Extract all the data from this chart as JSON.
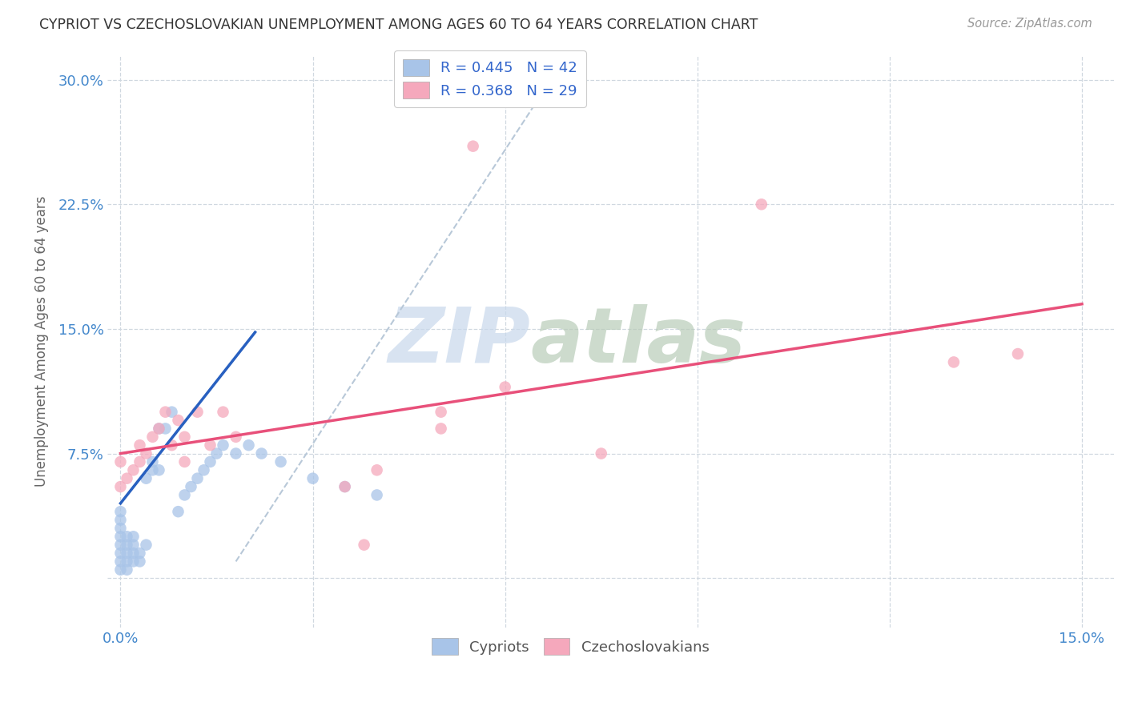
{
  "title": "CYPRIOT VS CZECHOSLOVAKIAN UNEMPLOYMENT AMONG AGES 60 TO 64 YEARS CORRELATION CHART",
  "source": "Source: ZipAtlas.com",
  "ylabel": "Unemployment Among Ages 60 to 64 years",
  "xlim": [
    -0.002,
    0.155
  ],
  "ylim": [
    -0.03,
    0.315
  ],
  "xticks": [
    0.0,
    0.03,
    0.06,
    0.09,
    0.12,
    0.15
  ],
  "xticklabels": [
    "0.0%",
    "",
    "",
    "",
    "",
    "15.0%"
  ],
  "yticks": [
    0.0,
    0.075,
    0.15,
    0.225,
    0.3
  ],
  "yticklabels": [
    "",
    "7.5%",
    "15.0%",
    "22.5%",
    "30.0%"
  ],
  "cypriot_color": "#a8c4e8",
  "czechoslovakian_color": "#f5a8bc",
  "cypriot_line_color": "#2860c0",
  "czechoslovakian_line_color": "#e8507a",
  "trend_line_color": "#b8c8d8",
  "R_cypriot": 0.445,
  "N_cypriot": 42,
  "R_czech": 0.368,
  "N_czech": 29,
  "cypriot_x": [
    0.0,
    0.0,
    0.0,
    0.0,
    0.0,
    0.0,
    0.0,
    0.0,
    0.001,
    0.001,
    0.001,
    0.001,
    0.001,
    0.002,
    0.002,
    0.002,
    0.002,
    0.003,
    0.003,
    0.004,
    0.004,
    0.005,
    0.005,
    0.006,
    0.006,
    0.007,
    0.008,
    0.009,
    0.01,
    0.011,
    0.012,
    0.013,
    0.014,
    0.015,
    0.016,
    0.018,
    0.02,
    0.022,
    0.025,
    0.03,
    0.035,
    0.04
  ],
  "cypriot_y": [
    0.005,
    0.01,
    0.015,
    0.02,
    0.025,
    0.03,
    0.035,
    0.04,
    0.005,
    0.01,
    0.015,
    0.02,
    0.025,
    0.01,
    0.015,
    0.02,
    0.025,
    0.01,
    0.015,
    0.02,
    0.06,
    0.065,
    0.07,
    0.065,
    0.09,
    0.09,
    0.1,
    0.04,
    0.05,
    0.055,
    0.06,
    0.065,
    0.07,
    0.075,
    0.08,
    0.075,
    0.08,
    0.075,
    0.07,
    0.06,
    0.055,
    0.05
  ],
  "czech_x": [
    0.0,
    0.0,
    0.001,
    0.002,
    0.003,
    0.003,
    0.004,
    0.005,
    0.006,
    0.007,
    0.008,
    0.009,
    0.01,
    0.01,
    0.012,
    0.014,
    0.016,
    0.018,
    0.035,
    0.038,
    0.04,
    0.05,
    0.05,
    0.055,
    0.06,
    0.075,
    0.1,
    0.13,
    0.14
  ],
  "czech_y": [
    0.055,
    0.07,
    0.06,
    0.065,
    0.07,
    0.08,
    0.075,
    0.085,
    0.09,
    0.1,
    0.08,
    0.095,
    0.07,
    0.085,
    0.1,
    0.08,
    0.1,
    0.085,
    0.055,
    0.02,
    0.065,
    0.09,
    0.1,
    0.26,
    0.115,
    0.075,
    0.225,
    0.13,
    0.135
  ],
  "background_color": "#ffffff",
  "grid_color": "#d0d8e0",
  "watermark_zip_color": "#c0cce0",
  "watermark_atlas_color": "#b8c8b0"
}
